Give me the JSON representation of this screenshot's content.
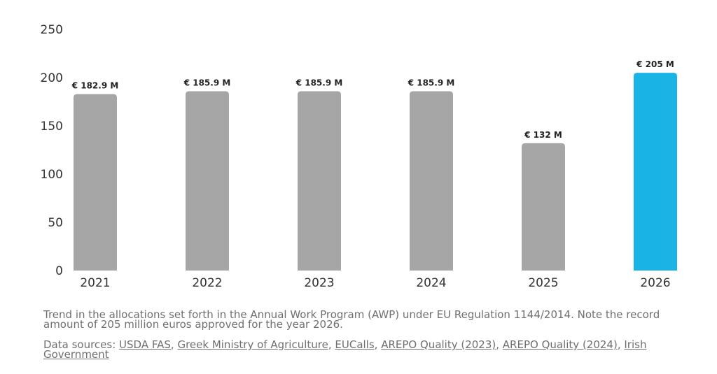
{
  "chart_data": {
    "type": "bar",
    "categories": [
      "2021",
      "2022",
      "2023",
      "2024",
      "2025",
      "2026"
    ],
    "values": [
      182.9,
      185.9,
      185.9,
      185.9,
      132,
      205
    ],
    "data_labels": [
      "€ 182.9 M",
      "€ 185.9 M",
      "€ 185.9 M",
      "€ 185.9 M",
      "€ 132 M",
      "€ 205 M"
    ],
    "y_ticks": [
      "0",
      "50",
      "100",
      "150",
      "200",
      "250"
    ],
    "ylim": [
      0,
      250
    ],
    "grid": false,
    "title": "",
    "xlabel": "",
    "ylabel": "",
    "highlight_index": 5,
    "colors": {
      "bar": "#a6a6a6",
      "highlight": "#19b3e6"
    }
  },
  "caption": "Trend in the allocations set forth in the Annual Work Program (AWP) under EU Regulation 1144/2014. Note the record amount of 205 million euros approved for the year 2026.",
  "sources": {
    "label": "Data sources:",
    "links": [
      "USDA FAS",
      "Greek Ministry of Agriculture",
      "EUCalls",
      "AREPO Quality (2023)",
      "AREPO Quality (2024)",
      "Irish Government"
    ]
  }
}
